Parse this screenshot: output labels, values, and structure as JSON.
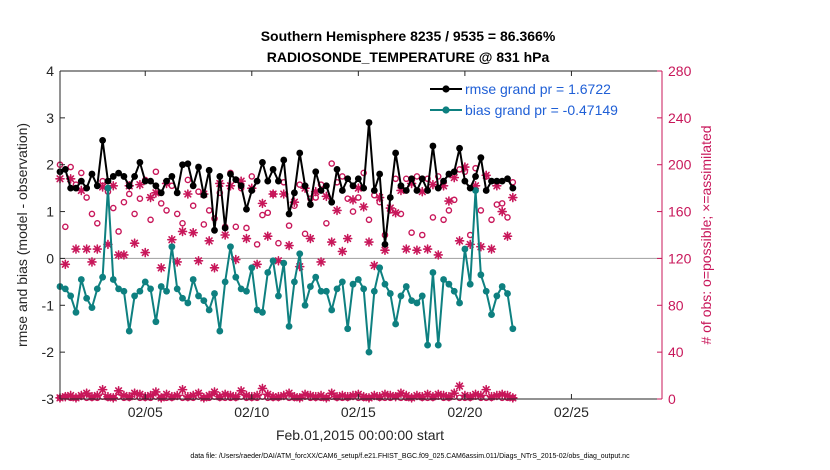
{
  "chart_data": {
    "type": "line",
    "title": "Southern Hemisphere 8235 / 9535 = 86.366%",
    "subtitle": "RADIOSONDE_TEMPERATURE @ 831 hPa",
    "xlabel": "Feb.01,2015 00:00:00 start",
    "ylabel": "rmse and bias (model - observation)",
    "ylabel_right": "# of obs: o=possible; ×=assimilated",
    "footnote": "data file: /Users/raeder/DAI/ATM_forcXX/CAM6_setup/f.e21.FHIST_BGC.f09_025.CAM6assim.011/Diags_NTrS_2015-02/obs_diag_output.nc",
    "xlim": [
      1.0,
      29.25
    ],
    "ylim": [
      -3,
      4
    ],
    "ylim_right": [
      0,
      280
    ],
    "y_ticks": [
      "-3",
      "-2",
      "-1",
      "0",
      "1",
      "2",
      "3",
      "4"
    ],
    "y_right_ticks": [
      "0",
      "40",
      "80",
      "120",
      "160",
      "200",
      "240",
      "280"
    ],
    "x_ticks": [
      {
        "value": 5,
        "label": "02/05"
      },
      {
        "value": 10,
        "label": "02/10"
      },
      {
        "value": 15,
        "label": "02/15"
      },
      {
        "value": 20,
        "label": "02/20"
      },
      {
        "value": 25,
        "label": "02/25"
      }
    ],
    "x_start": 1.0,
    "x_step": 0.25,
    "colors": {
      "rmse": "#000000",
      "bias": "#0e8080",
      "obs": "#c8175a",
      "legend_text": "#1f5fd6",
      "zero_line": "#aaaaaa"
    },
    "legend": {
      "placement": "top-right",
      "rmse_label": "rmse grand pr = 1.6722",
      "bias_label": "bias grand pr = -0.47149"
    },
    "series": [
      {
        "name": "rmse",
        "axis": "left",
        "values": [
          1.85,
          1.9,
          1.5,
          1.5,
          1.65,
          1.5,
          1.8,
          1.55,
          2.52,
          1.65,
          1.75,
          1.82,
          1.75,
          1.55,
          1.75,
          2.05,
          1.65,
          1.65,
          1.55,
          1.4,
          1.65,
          1.75,
          1.4,
          2.0,
          2.02,
          1.55,
          1.95,
          1.35,
          1.88,
          0.6,
          1.75,
          0.65,
          1.8,
          1.68,
          1.55,
          1.05,
          1.45,
          1.65,
          2.05,
          1.65,
          1.9,
          1.65,
          2.1,
          0.95,
          1.4,
          2.25,
          1.55,
          1.15,
          1.85,
          1.45,
          1.55,
          1.2,
          1.9,
          1.45,
          1.7,
          1.55,
          1.7,
          1.5,
          2.9,
          1.45,
          1.8,
          0.3,
          1.3,
          2.25,
          1.55,
          1.45,
          1.7,
          1.45,
          1.7,
          1.45,
          2.4,
          1.5,
          1.65,
          1.8,
          1.85,
          2.35,
          1.65,
          1.5,
          1.75,
          2.15,
          1.45,
          1.65,
          1.65,
          1.65,
          1.7,
          1.5
        ]
      },
      {
        "name": "bias",
        "axis": "left",
        "values": [
          -0.6,
          -0.65,
          -0.8,
          -1.15,
          -0.45,
          -0.85,
          -1.05,
          -0.65,
          -0.4,
          1.5,
          -0.45,
          -0.65,
          -0.7,
          -1.55,
          -0.8,
          -0.7,
          -0.5,
          -0.65,
          -1.35,
          -0.6,
          -0.7,
          0.25,
          -0.65,
          -0.85,
          -0.95,
          -0.45,
          -0.8,
          -0.9,
          -1.1,
          -0.75,
          -1.55,
          -0.5,
          0.25,
          -0.4,
          -0.65,
          -0.7,
          -0.2,
          -1.1,
          -1.15,
          -0.3,
          -0.05,
          -0.8,
          -0.1,
          -1.45,
          -0.5,
          0.1,
          -1.0,
          -0.6,
          -0.4,
          -0.7,
          -0.7,
          -1.1,
          -0.65,
          -0.5,
          -1.5,
          -0.55,
          -0.45,
          -0.65,
          -2.0,
          -0.7,
          -0.2,
          -0.55,
          -0.75,
          -1.4,
          -0.8,
          -0.6,
          -0.9,
          -0.95,
          -0.8,
          -1.85,
          -0.3,
          -1.85,
          -0.45,
          -0.55,
          -0.7,
          -0.95,
          0.2,
          -0.55,
          1.45,
          -0.35,
          -0.7,
          -1.2,
          -0.8,
          -0.6,
          -0.75,
          -1.5
        ]
      },
      {
        "name": "obs_possible",
        "axis": "right",
        "marker": "o",
        "values": [
          200,
          147,
          198,
          183,
          193,
          172,
          158,
          150,
          186,
          177,
          163,
          143,
          168,
          175,
          158,
          171,
          187,
          153,
          194,
          167,
          161,
          182,
          158,
          150,
          187,
          165,
          177,
          149,
          161,
          154,
          176,
          147,
          193,
          147,
          180,
          146,
          190,
          132,
          157,
          159,
          175,
          133,
          185,
          148,
          165,
          183,
          141,
          171,
          172,
          183,
          150,
          201,
          185,
          190,
          171,
          160,
          172,
          193,
          153,
          174,
          168,
          140,
          161,
          188,
          158,
          188,
          142,
          190,
          140,
          188,
          155,
          190,
          153,
          161,
          170,
          196,
          194,
          140,
          197,
          161,
          190,
          153,
          166,
          167,
          155,
          185
        ]
      },
      {
        "name": "obs_assimilated",
        "axis": "right",
        "marker": "*",
        "values": [
          188,
          115,
          188,
          128,
          178,
          128,
          117,
          128,
          181,
          132,
          182,
          123,
          123,
          182,
          133,
          183,
          125,
          172,
          176,
          112,
          184,
          136,
          117,
          143,
          175,
          142,
          118,
          175,
          135,
          112,
          184,
          140,
          182,
          119,
          186,
          137,
          180,
          115,
          167,
          139,
          175,
          118,
          175,
          131,
          168,
          113,
          180,
          137,
          177,
          117,
          173,
          134,
          161,
          126,
          137,
          170,
          180,
          164,
          134,
          114,
          172,
          127,
          163,
          159,
          178,
          128,
          184,
          127,
          177,
          128,
          183,
          123,
          182,
          169,
          189,
          135,
          198,
          132,
          182,
          130,
          191,
          128,
          182,
          160,
          139,
          172
        ]
      },
      {
        "name": "obs_possible_bottom",
        "axis": "right",
        "marker": "o",
        "values": [
          1,
          2,
          1,
          1,
          2,
          1,
          1,
          1,
          2,
          1,
          1,
          2,
          1,
          1,
          2,
          1,
          1,
          1,
          2,
          1,
          1,
          1,
          2,
          1,
          1,
          1,
          2,
          1,
          1,
          2,
          1,
          1,
          1,
          1,
          2,
          1,
          1,
          1,
          2,
          1,
          1,
          1,
          2,
          1,
          1,
          1,
          2,
          1,
          1,
          1,
          1,
          2,
          1,
          1,
          1,
          2,
          1,
          1,
          1,
          2,
          1,
          1,
          1,
          2,
          1,
          1,
          1,
          2,
          1,
          1,
          1,
          2,
          1,
          1,
          2,
          1,
          1,
          1,
          2,
          1,
          1,
          1,
          2,
          1,
          1,
          1
        ]
      },
      {
        "name": "obs_assimilated_bottom",
        "axis": "right",
        "marker": "*",
        "values": [
          1,
          2,
          3,
          1,
          3,
          5,
          2,
          3,
          8,
          2,
          1,
          7,
          3,
          2,
          5,
          4,
          2,
          3,
          6,
          1,
          4,
          2,
          3,
          8,
          2,
          3,
          5,
          1,
          3,
          6,
          2,
          4,
          3,
          2,
          7,
          3,
          2,
          3,
          9,
          4,
          2,
          2,
          3,
          5,
          2,
          1,
          4,
          3,
          2,
          3,
          1,
          5,
          2,
          3,
          2,
          3,
          4,
          2,
          1,
          3,
          2,
          4,
          3,
          2,
          5,
          3,
          1,
          3,
          2,
          4,
          2,
          4,
          3,
          2,
          5,
          11,
          3,
          2,
          4,
          3,
          8,
          2,
          3,
          4,
          3,
          1
        ]
      }
    ]
  }
}
